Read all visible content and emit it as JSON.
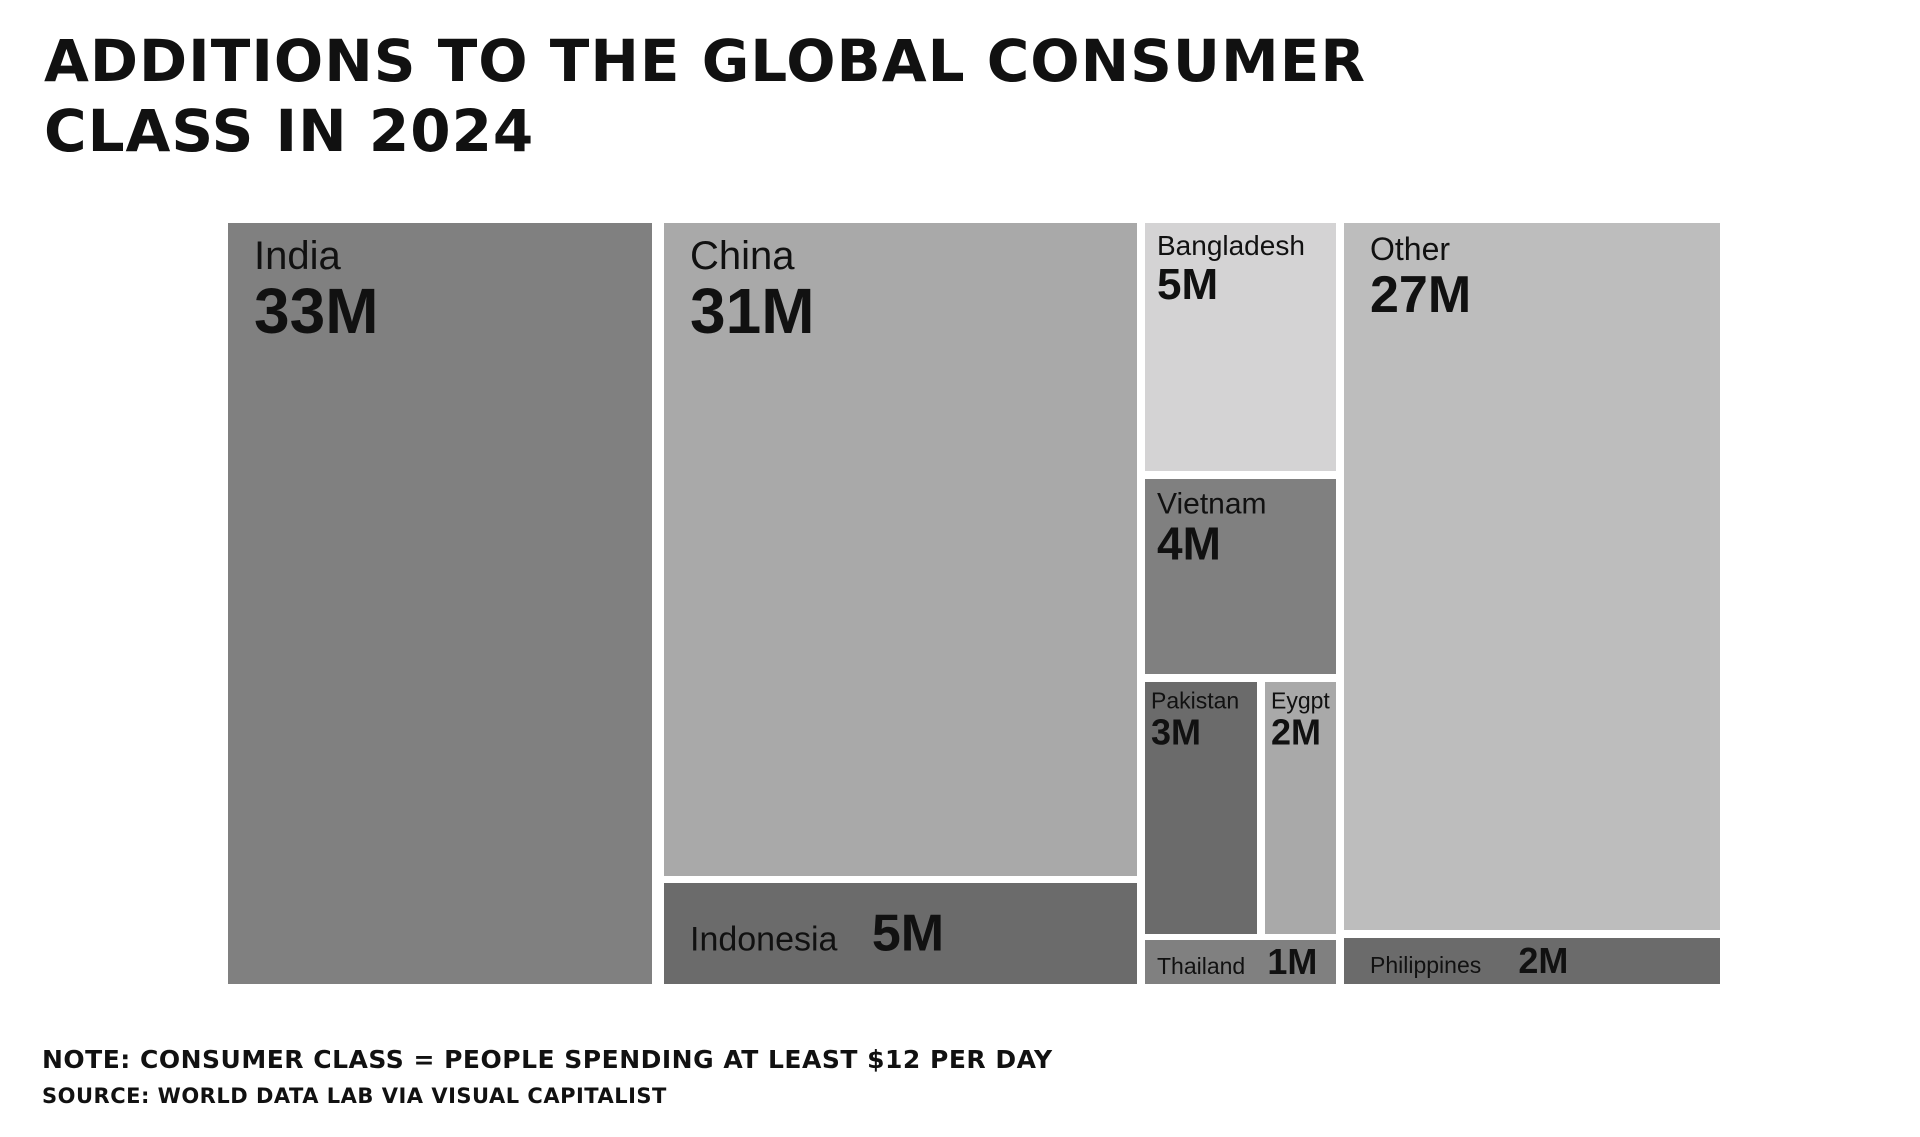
{
  "chart_data": {
    "type": "treemap",
    "title_lines": [
      "Additions to the Global Consumer",
      "Class in 2024"
    ],
    "note": "Note: Consumer class = people spending at least $12 per day",
    "source": "Source: World Data Lab via Visual Capitalist",
    "unit": "M",
    "items": [
      {
        "name": "India",
        "value": 33,
        "label": "33M",
        "color": "#808080"
      },
      {
        "name": "China",
        "value": 31,
        "label": "31M",
        "color": "#a9a9a9"
      },
      {
        "name": "Indonesia",
        "value": 5,
        "label": "5M",
        "color": "#6b6b6b"
      },
      {
        "name": "Bangladesh",
        "value": 5,
        "label": "5M",
        "color": "#d4d3d4"
      },
      {
        "name": "Vietnam",
        "value": 4,
        "label": "4M",
        "color": "#808080"
      },
      {
        "name": "Pakistan",
        "value": 3,
        "label": "3M",
        "color": "#6b6b6b"
      },
      {
        "name": "Eygpt",
        "value": 2,
        "label": "2M",
        "color": "#a9a9a9"
      },
      {
        "name": "Thailand",
        "value": 1,
        "label": "1M",
        "color": "#808080"
      },
      {
        "name": "Other",
        "value": 27,
        "label": "27M",
        "color": "#bdbdbd"
      },
      {
        "name": "Philippines",
        "value": 2,
        "label": "2M",
        "color": "#6b6b6b"
      }
    ]
  }
}
